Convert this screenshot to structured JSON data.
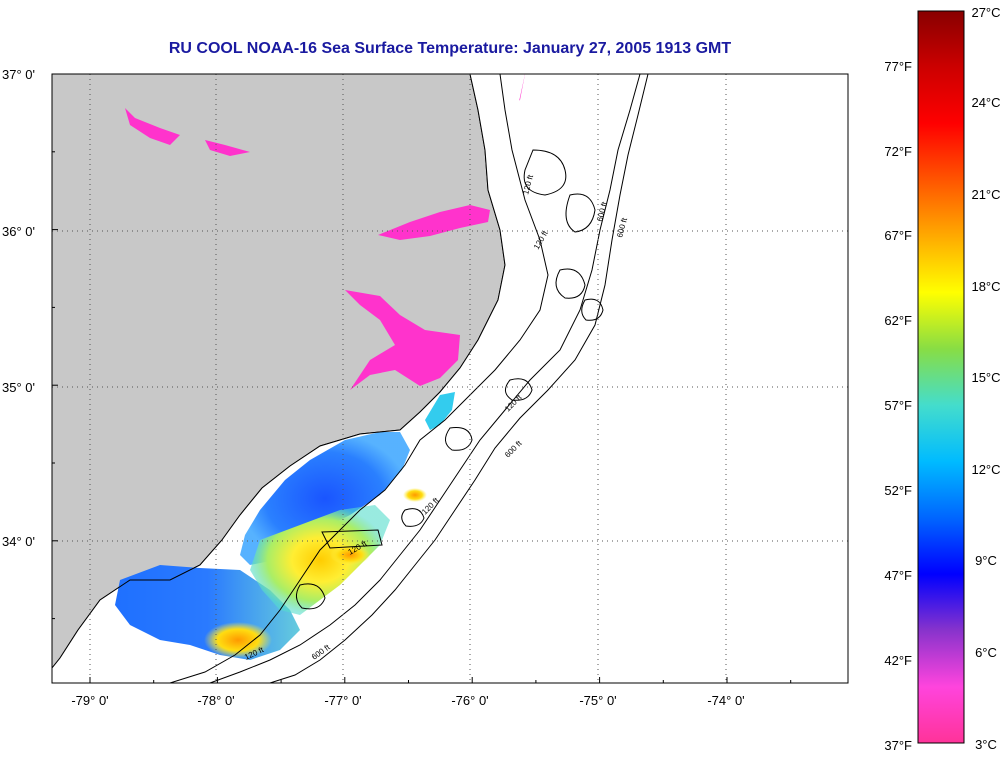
{
  "title": "RU COOL  NOAA-16  Sea Surface Temperature:  January 27, 2005 1913 GMT",
  "map": {
    "lat_labels": [
      "37° 0'",
      "36° 0'",
      "35° 0'",
      "34° 0'"
    ],
    "lon_labels": [
      "-79° 0'",
      "-78° 0'",
      "-77° 0'",
      "-76° 0'",
      "-75° 0'",
      "-74° 0'"
    ],
    "contour_labels": [
      "120 ft",
      "600 ft",
      "120 ft",
      "600 ft",
      "120 ft",
      "600 ft",
      "120 ft",
      "120 ft",
      "120 ft",
      "600 ft"
    ],
    "colors": {
      "land": "#c8c8c8",
      "ocean_no_data": "#ffffff",
      "grid": "#555555",
      "contour": "#000000",
      "cold_pink": "#ff33cc",
      "blue": "#1a66ff",
      "cyan": "#33ccee",
      "green": "#66dd66",
      "yellow": "#ffee22",
      "orange": "#ff9900"
    }
  },
  "colorbar": {
    "celsius_labels": [
      "27°C",
      "24°C",
      "21°C",
      "18°C",
      "15°C",
      "12°C",
      "9°C",
      "6°C",
      "3°C"
    ],
    "fahrenheit_labels": [
      "77°F",
      "72°F",
      "67°F",
      "62°F",
      "57°F",
      "52°F",
      "47°F",
      "42°F",
      "37°F"
    ],
    "stops": [
      "#ff3399",
      "#ff44dd",
      "#8833cc",
      "#0000ff",
      "#0066ff",
      "#00bbff",
      "#44ddcc",
      "#88dd44",
      "#ffff00",
      "#ffaa00",
      "#ff5500",
      "#ff0000",
      "#cc0000",
      "#880000"
    ]
  }
}
